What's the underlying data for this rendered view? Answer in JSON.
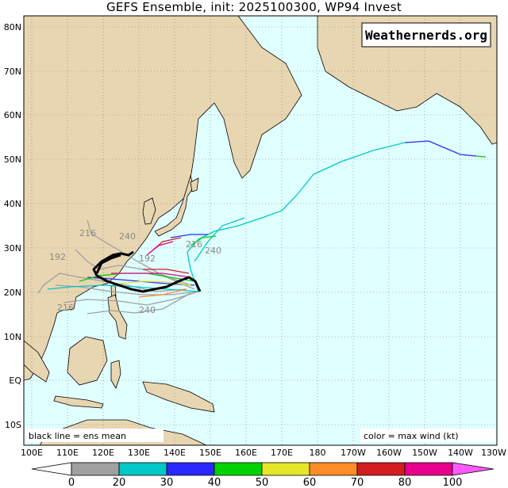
{
  "title": "GEFS Ensemble, init: 2025100300, WP94 Invest",
  "watermark": "Weathernerds.org",
  "legend_left": "black line = ens mean",
  "legend_right": "color = max wind (kt)",
  "lat_labels": [
    "80N",
    "70N",
    "60N",
    "50N",
    "40N",
    "30N",
    "20N",
    "10N",
    "EQ",
    "10S"
  ],
  "lon_labels": [
    "100E",
    "110E",
    "120E",
    "130E",
    "140E",
    "150E",
    "160E",
    "170E",
    "180",
    "170W",
    "160W",
    "150W",
    "140W",
    "130W"
  ],
  "colorbar": {
    "tick_labels": [
      "0",
      "20",
      "30",
      "40",
      "50",
      "60",
      "70",
      "80",
      "100"
    ],
    "colors": [
      "#a0a0a0",
      "#00c8c8",
      "#2828ff",
      "#00d200",
      "#e6e628",
      "#ff8c28",
      "#d21e1e",
      "#e6008c"
    ]
  },
  "hour_labels": [
    "216",
    "240",
    "192",
    "216",
    "240",
    "192",
    "216",
    "240"
  ],
  "colors": {
    "ocean": "#e0ffff",
    "land": "#e8d6b2",
    "coast": "#000000",
    "grid": "#7a7a7a",
    "mean": "#000000"
  }
}
